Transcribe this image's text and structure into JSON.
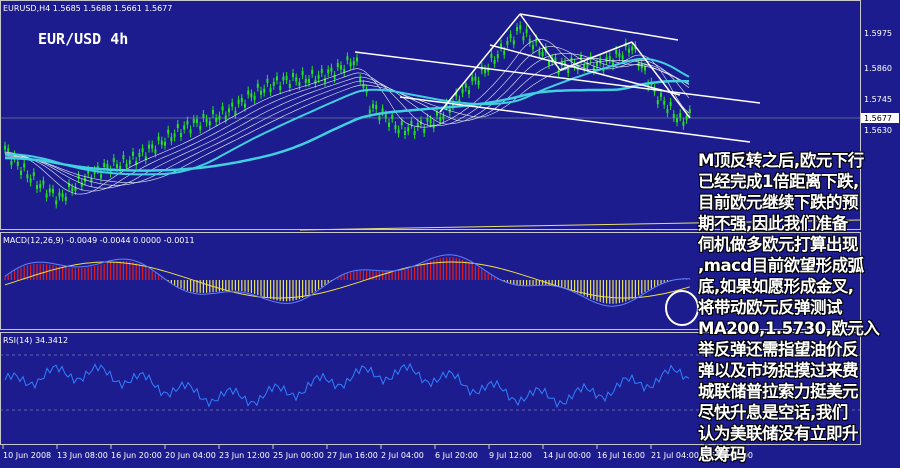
{
  "header": {
    "symbol_line": "EURUSD,H4  1.5685 1.5688 1.5661 1.5677",
    "chart_label": "EUR/USD 4h"
  },
  "price_scale": [
    "1.5975",
    "1.5860",
    "1.5745",
    "1.5677",
    "1.5630"
  ],
  "macd_label": "MACD(12,26,9) -0.0049 -0.0044 0.0000 -0.0011",
  "rsi_label": "RSI(14) 34.3412",
  "time_axis": [
    "10 Jun 2008",
    "13 Jun 08:00",
    "16 Jun 20:00",
    "20 Jun 04:00",
    "23 Jun 12:00",
    "25 Jun 00:00",
    "27 Jun 16:00",
    "2 Jul 04:00",
    "6 Jul 20:00",
    "9 Jul 12:00",
    "14 Jul 00:00",
    "16 Jul 16:00",
    "21 Jul 04:00",
    "23 Jul 20:00"
  ],
  "annotation": [
    "M顶反转之后,欧元下行",
    "已经完成1倍距离下跌,",
    "目前欧元继续下跌的预",
    "期不强,因此我们准备",
    "伺机做多欧元打算出现",
    ",macd目前欲望形成弧",
    "底,如果如愿形成金叉,",
    "将带动欧元反弹测试",
    "MA200,1.5730,欧元入",
    "举反弹还需指望油价反",
    "弹以及市场捉摸过来费",
    "城联储普拉索力挺美元",
    "尽快升息是空话,我们",
    "认为美联储没有立即升",
    "息筹码"
  ]
}
